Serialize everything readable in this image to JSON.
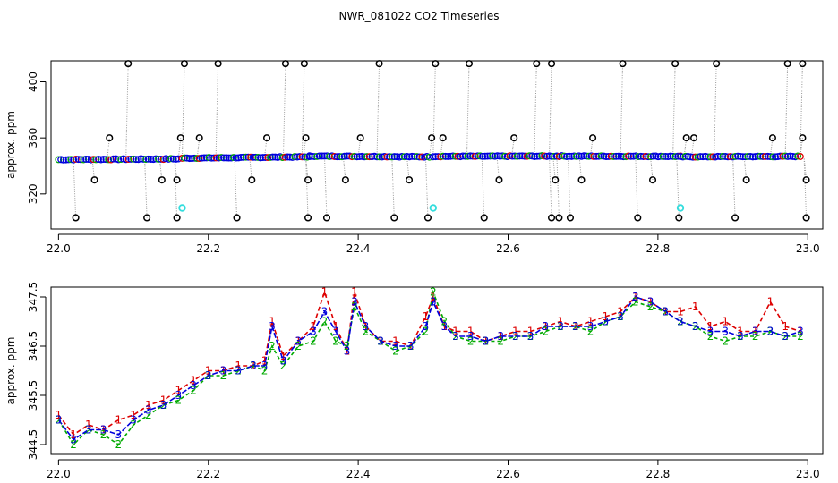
{
  "title": "NWR_081022  CO2 Timeseries",
  "colors": {
    "series1": "#dd0000",
    "series2": "#00aa00",
    "series3": "#0000dd",
    "raw": "#000000",
    "cyan": "#33dddd",
    "drop": "#999999"
  },
  "chart_data": [
    {
      "type": "scatter",
      "title": "NWR_081022  CO2 Timeseries",
      "xlabel": "",
      "ylabel": "approx. ppm",
      "xlim": [
        21.99,
        23.02
      ],
      "ylim": [
        295,
        415
      ],
      "xticks": [
        "22.0",
        "22.2",
        "22.4",
        "22.6",
        "22.8",
        "23.0"
      ],
      "yticks": [
        "320",
        "360",
        "400"
      ],
      "baseline_series": [
        {
          "x": [
            22.0,
            22.16
          ],
          "y": [
            344.5,
            345.0
          ]
        },
        {
          "x": [
            22.165,
            22.335
          ],
          "y": [
            345.5,
            346.5
          ]
        },
        {
          "x": [
            22.335,
            22.495
          ],
          "y": [
            347.0,
            346.5
          ]
        },
        {
          "x": [
            22.5,
            22.665
          ],
          "y": [
            346.8,
            347.0
          ]
        },
        {
          "x": [
            22.665,
            22.83
          ],
          "y": [
            347.0,
            346.8
          ]
        },
        {
          "x": [
            22.83,
            22.99
          ],
          "y": [
            346.5,
            346.8
          ]
        }
      ],
      "outliers": {
        "y_high": 413,
        "y_mid": 360,
        "y_low": 330,
        "y_bottom": 303,
        "high_x": [
          22.09,
          22.165,
          22.21,
          22.3,
          22.325,
          22.425,
          22.5,
          22.545,
          22.635,
          22.655,
          22.75,
          22.82,
          22.875,
          22.97,
          22.99
        ],
        "mid_x": [
          22.065,
          22.16,
          22.185,
          22.275,
          22.327,
          22.4,
          22.495,
          22.51,
          22.605,
          22.71,
          22.835,
          22.845,
          22.95,
          22.99
        ],
        "low_x": [
          22.045,
          22.135,
          22.155,
          22.255,
          22.33,
          22.38,
          22.465,
          22.585,
          22.66,
          22.695,
          22.79,
          22.915,
          22.995
        ],
        "bottom_x": [
          22.02,
          22.115,
          22.155,
          22.235,
          22.33,
          22.355,
          22.445,
          22.49,
          22.565,
          22.655,
          22.665,
          22.68,
          22.77,
          22.825,
          22.9,
          22.995
        ]
      },
      "cyan_points": [
        {
          "x": 22.165,
          "y": 310
        },
        {
          "x": 22.5,
          "y": 310
        },
        {
          "x": 22.83,
          "y": 310
        }
      ]
    },
    {
      "type": "line",
      "xlabel": "",
      "ylabel": "approx. ppm",
      "xlim": [
        21.99,
        23.02
      ],
      "ylim": [
        344.3,
        347.7
      ],
      "xticks": [
        "22.0",
        "22.2",
        "22.4",
        "22.6",
        "22.8",
        "23.0"
      ],
      "yticks": [
        "344.5",
        "345.5",
        "346.5",
        "347.5"
      ],
      "x": [
        22.0,
        22.02,
        22.04,
        22.06,
        22.08,
        22.1,
        22.12,
        22.14,
        22.16,
        22.18,
        22.2,
        22.22,
        22.24,
        22.26,
        22.275,
        22.285,
        22.3,
        22.32,
        22.34,
        22.355,
        22.37,
        22.385,
        22.395,
        22.41,
        22.43,
        22.45,
        22.47,
        22.49,
        22.5,
        22.515,
        22.53,
        22.55,
        22.57,
        22.59,
        22.61,
        22.63,
        22.65,
        22.67,
        22.69,
        22.71,
        22.73,
        22.75,
        22.77,
        22.79,
        22.81,
        22.83,
        22.85,
        22.87,
        22.89,
        22.91,
        22.93,
        22.95,
        22.97,
        22.99
      ],
      "series": [
        {
          "name": "1",
          "values": [
            345.1,
            344.7,
            344.9,
            344.8,
            345.0,
            345.1,
            345.3,
            345.4,
            345.6,
            345.8,
            346.0,
            346.0,
            346.1,
            346.1,
            346.2,
            347.0,
            346.3,
            346.6,
            346.9,
            347.6,
            346.9,
            346.4,
            347.6,
            346.9,
            346.6,
            346.6,
            346.5,
            347.1,
            347.5,
            346.9,
            346.8,
            346.8,
            346.6,
            346.7,
            346.8,
            346.8,
            346.9,
            347.0,
            346.9,
            347.0,
            347.1,
            347.2,
            347.5,
            347.4,
            347.2,
            347.2,
            347.3,
            346.9,
            347.0,
            346.8,
            346.8,
            347.4,
            346.9,
            346.8
          ]
        },
        {
          "name": "2",
          "values": [
            345.0,
            344.5,
            344.8,
            344.7,
            344.5,
            344.9,
            345.1,
            345.3,
            345.4,
            345.6,
            345.9,
            345.9,
            346.0,
            346.1,
            346.0,
            346.5,
            346.1,
            346.5,
            346.6,
            347.0,
            346.6,
            346.5,
            347.3,
            346.8,
            346.6,
            346.4,
            346.5,
            346.8,
            347.6,
            347.0,
            346.7,
            346.6,
            346.6,
            346.6,
            346.7,
            346.7,
            346.8,
            346.9,
            346.9,
            346.8,
            347.0,
            347.1,
            347.4,
            347.3,
            347.2,
            347.0,
            346.9,
            346.7,
            346.6,
            346.7,
            346.7,
            346.8,
            346.7,
            346.7
          ]
        },
        {
          "name": "3",
          "values": [
            345.0,
            344.6,
            344.8,
            344.8,
            344.7,
            345.0,
            345.2,
            345.3,
            345.5,
            345.7,
            345.9,
            346.0,
            346.0,
            346.1,
            346.1,
            346.9,
            346.2,
            346.6,
            346.8,
            347.2,
            346.8,
            346.4,
            347.4,
            346.9,
            346.6,
            346.5,
            346.5,
            346.9,
            347.4,
            346.9,
            346.7,
            346.7,
            346.6,
            346.7,
            346.7,
            346.7,
            346.9,
            346.9,
            346.9,
            346.9,
            347.0,
            347.1,
            347.5,
            347.4,
            347.2,
            347.0,
            346.9,
            346.8,
            346.8,
            346.7,
            346.8,
            346.8,
            346.7,
            346.8
          ]
        }
      ]
    }
  ]
}
